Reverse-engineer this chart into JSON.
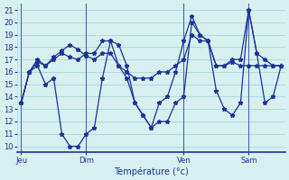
{
  "background_color": "#d8f0f0",
  "grid_color": "#aadddd",
  "line_color": "#1a3399",
  "title": "Température (°c)",
  "ylabel_ticks": [
    10,
    11,
    12,
    13,
    14,
    15,
    16,
    17,
    18,
    19,
    20,
    21
  ],
  "ylim": [
    9.5,
    21.5
  ],
  "day_labels": [
    "Jeu",
    "Dim",
    "Ven",
    "Sam"
  ],
  "day_positions": [
    0,
    8,
    20,
    28
  ],
  "series": [
    [
      13.5,
      16.0,
      16.8,
      16.5,
      17.0,
      17.5,
      17.2,
      17.0,
      17.5,
      17.5,
      18.5,
      18.5,
      16.5,
      15.5,
      13.5,
      12.5,
      11.5,
      13.5,
      14.0,
      16.0,
      18.5,
      20.5,
      19.0,
      18.5,
      16.5,
      16.5,
      17.0,
      17.0,
      21.0,
      17.5,
      17.0,
      16.5,
      16.5
    ],
    [
      13.5,
      16.0,
      17.0,
      16.5,
      17.2,
      17.7,
      18.2,
      17.8,
      17.3,
      17.0,
      17.5,
      17.5,
      16.5,
      16.0,
      15.5,
      15.5,
      15.5,
      16.0,
      16.0,
      16.5,
      17.0,
      19.0,
      18.5,
      18.5,
      16.5,
      16.5,
      16.8,
      16.5,
      16.5,
      16.5,
      16.5,
      16.5,
      16.5
    ],
    [
      13.5,
      16.0,
      16.5,
      15.0,
      15.5,
      11.0,
      10.0,
      10.0,
      11.0,
      11.5,
      15.5,
      18.5,
      18.2,
      16.5,
      13.5,
      12.5,
      11.5,
      12.0,
      12.0,
      13.5,
      14.0,
      20.0,
      19.0,
      18.5,
      14.5,
      13.0,
      12.5,
      13.5,
      21.0,
      17.5,
      13.5,
      14.0,
      16.5
    ]
  ],
  "n_points": 33
}
